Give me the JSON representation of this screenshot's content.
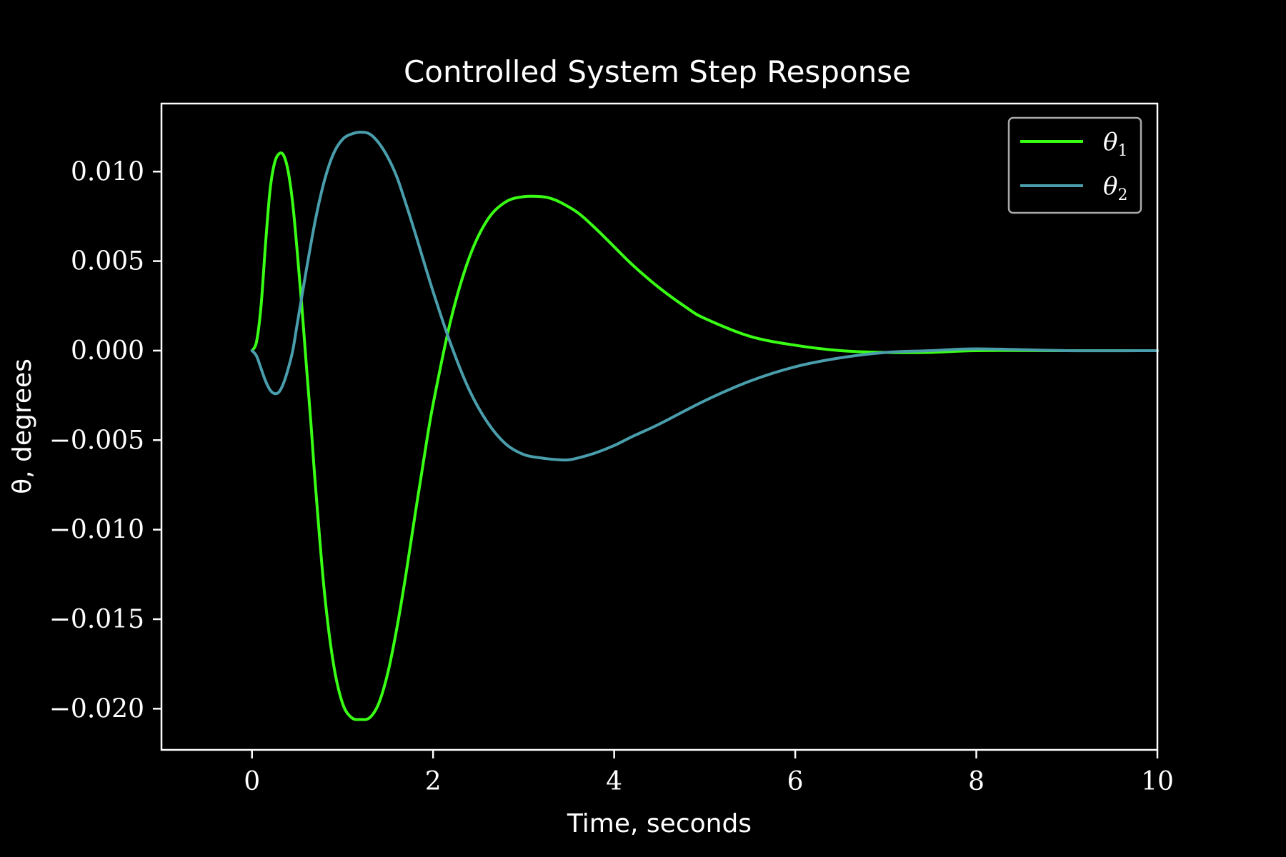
{
  "chart_data": {
    "type": "line",
    "title": "Controlled System Step Response",
    "xlabel": "Time, seconds",
    "ylabel": "θ, degrees",
    "xlim": [
      -1,
      10
    ],
    "ylim": [
      -0.0223,
      0.0138
    ],
    "x_ticks": [
      0,
      2,
      4,
      6,
      8,
      10
    ],
    "x_tick_labels": [
      "0",
      "2",
      "4",
      "6",
      "8",
      "10"
    ],
    "y_ticks": [
      0.01,
      0.005,
      0.0,
      -0.005,
      -0.01,
      -0.015,
      -0.02
    ],
    "y_tick_labels": [
      "0.010",
      "0.005",
      "0.000",
      "−0.005",
      "−0.010",
      "−0.015",
      "−0.020"
    ],
    "grid": false,
    "legend_position": "top-right",
    "background": "#000000",
    "axis_color": "#ffffff",
    "series": [
      {
        "name": "θ1",
        "legend_symbol": "θ",
        "legend_subscript": "1",
        "color": "#39ff14",
        "x": [
          0.0,
          0.05,
          0.1,
          0.15,
          0.2,
          0.25,
          0.3,
          0.35,
          0.4,
          0.45,
          0.5,
          0.55,
          0.6,
          0.65,
          0.7,
          0.8,
          0.9,
          1.0,
          1.1,
          1.2,
          1.3,
          1.4,
          1.5,
          1.6,
          1.7,
          1.8,
          1.9,
          2.0,
          2.2,
          2.4,
          2.6,
          2.8,
          3.0,
          3.2,
          3.3,
          3.4,
          3.6,
          3.8,
          4.0,
          4.2,
          4.5,
          4.8,
          5.0,
          5.5,
          6.0,
          6.5,
          7.0,
          7.5,
          8.0,
          9.0,
          10.0
        ],
        "y": [
          0.0,
          0.0005,
          0.0025,
          0.006,
          0.009,
          0.0105,
          0.011,
          0.0109,
          0.01,
          0.0082,
          0.0055,
          0.0025,
          -0.0008,
          -0.004,
          -0.0075,
          -0.0135,
          -0.0175,
          -0.0197,
          -0.0205,
          -0.0206,
          -0.0205,
          -0.0197,
          -0.018,
          -0.0155,
          -0.0125,
          -0.0092,
          -0.006,
          -0.003,
          0.0018,
          0.0052,
          0.0073,
          0.0083,
          0.0086,
          0.0086,
          0.0085,
          0.0083,
          0.0077,
          0.0068,
          0.0058,
          0.0048,
          0.0035,
          0.0024,
          0.0018,
          0.0008,
          0.0003,
          0.0,
          -0.0001,
          -0.0001,
          0.0,
          0.0,
          0.0
        ]
      },
      {
        "name": "θ2",
        "legend_symbol": "θ",
        "legend_subscript": "2",
        "color": "#4a9eac",
        "x": [
          0.0,
          0.05,
          0.1,
          0.15,
          0.2,
          0.25,
          0.3,
          0.35,
          0.4,
          0.45,
          0.5,
          0.6,
          0.7,
          0.8,
          0.9,
          1.0,
          1.1,
          1.2,
          1.3,
          1.4,
          1.5,
          1.6,
          1.7,
          1.8,
          2.0,
          2.2,
          2.4,
          2.6,
          2.8,
          3.0,
          3.2,
          3.4,
          3.5,
          3.6,
          3.8,
          4.0,
          4.2,
          4.5,
          5.0,
          5.5,
          6.0,
          6.5,
          7.0,
          7.5,
          8.0,
          9.0,
          10.0
        ],
        "y": [
          0.0,
          -0.0003,
          -0.001,
          -0.0017,
          -0.0022,
          -0.0024,
          -0.0023,
          -0.0018,
          -0.001,
          0.0,
          0.0015,
          0.0045,
          0.0073,
          0.0095,
          0.011,
          0.0118,
          0.0121,
          0.0122,
          0.0121,
          0.0116,
          0.0108,
          0.0097,
          0.0082,
          0.0066,
          0.0033,
          0.0003,
          -0.0022,
          -0.004,
          -0.0052,
          -0.0058,
          -0.006,
          -0.0061,
          -0.0061,
          -0.006,
          -0.0057,
          -0.0053,
          -0.0048,
          -0.0041,
          -0.0028,
          -0.0017,
          -0.0009,
          -0.0004,
          -0.0001,
          0.0,
          0.0001,
          0.0,
          0.0
        ]
      }
    ]
  }
}
